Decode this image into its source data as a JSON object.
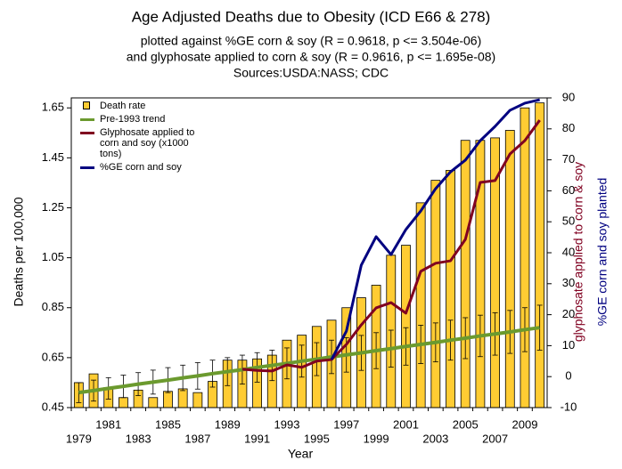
{
  "chart_data": {
    "type": "bar",
    "title": "Age Adjusted Deaths due to Obesity (ICD E66 & 278)",
    "subtitle": [
      "plotted against %GE corn & soy (R = 0.9618, p <= 3.504e-06)",
      "and glyphosate applied to corn & soy (R = 0.9616, p <= 1.695e-08)",
      "Sources:USDA:NASS; CDC"
    ],
    "x_label": "Year",
    "y_label": "Deaths per 100,000",
    "y2_labels": [
      {
        "text": "glyphosate applied to corn & soy",
        "color": "#800020"
      },
      {
        "text": "%GE corn and soy planted",
        "color": "#000080"
      }
    ],
    "categories": [
      "1979",
      null,
      "1981",
      null,
      "1983",
      null,
      "1985",
      null,
      "1987",
      null,
      "1989",
      null,
      "1991",
      null,
      "1993",
      null,
      "1995",
      null,
      "1997",
      null,
      "1999",
      null,
      "2001",
      null,
      "2003",
      null,
      "2005",
      null,
      "2007",
      null,
      "2009",
      null
    ],
    "ylim": [
      0.45,
      1.69
    ],
    "yticks": [
      0.45,
      0.65,
      0.85,
      1.05,
      1.25,
      1.45,
      1.65
    ],
    "y2lim": [
      -10,
      90
    ],
    "y2ticks": [
      -10,
      0,
      10,
      20,
      30,
      40,
      50,
      60,
      70,
      80,
      90
    ],
    "legend": "upper left",
    "series": [
      {
        "name": "Death rate",
        "type": "bar",
        "color": "#ffcc33",
        "values": [
          0.55,
          0.585,
          0.53,
          0.49,
          0.52,
          0.49,
          0.515,
          0.525,
          0.51,
          0.555,
          0.64,
          0.64,
          0.645,
          0.66,
          0.72,
          0.74,
          0.775,
          0.8,
          0.85,
          0.89,
          0.94,
          1.06,
          1.1,
          1.27,
          1.36,
          1.4,
          1.52,
          1.52,
          1.53,
          1.56,
          1.65,
          1.67
        ]
      },
      {
        "name": "Pre-1993 trend",
        "type": "line",
        "color": "#6b9a2e",
        "values": [
          0.51,
          0.518,
          0.527,
          0.535,
          0.544,
          0.552,
          0.56,
          0.569,
          0.577,
          0.586,
          0.594,
          0.602,
          0.611,
          0.619,
          0.627,
          0.636,
          0.644,
          0.653,
          0.661,
          0.669,
          0.678,
          0.686,
          0.695,
          0.703,
          0.711,
          0.72,
          0.728,
          0.737,
          0.745,
          0.753,
          0.762,
          0.77
        ],
        "errors": [
          0.04,
          0.042,
          0.043,
          0.045,
          0.046,
          0.048,
          0.05,
          0.051,
          0.053,
          0.054,
          0.056,
          0.058,
          0.059,
          0.061,
          0.062,
          0.064,
          0.066,
          0.067,
          0.069,
          0.07,
          0.072,
          0.074,
          0.075,
          0.077,
          0.078,
          0.08,
          0.082,
          0.083,
          0.085,
          0.086,
          0.088,
          0.09
        ]
      },
      {
        "name": "Glyphosate applied to corn and soy (x1000 tons)",
        "type": "line",
        "axis": "y2",
        "color": "#800020",
        "values": [
          null,
          null,
          null,
          null,
          null,
          null,
          null,
          null,
          null,
          null,
          null,
          2.4,
          2,
          1.8,
          3.8,
          3,
          5,
          5.5,
          10.4,
          16.7,
          22.2,
          23.9,
          20.5,
          34,
          36.6,
          37.4,
          44.3,
          62.7,
          63.3,
          71.9,
          76.2,
          82.8
        ]
      },
      {
        "name": "%GE corn and soy",
        "type": "line",
        "axis": "y2",
        "color": "#000080",
        "values": [
          null,
          null,
          null,
          null,
          null,
          null,
          null,
          null,
          null,
          null,
          null,
          null,
          null,
          null,
          null,
          null,
          null,
          5.5,
          14.7,
          36,
          45.2,
          39.4,
          47.5,
          53.5,
          60.7,
          66.1,
          69.9,
          76.2,
          80.8,
          86,
          88.3,
          89.4
        ]
      }
    ]
  }
}
